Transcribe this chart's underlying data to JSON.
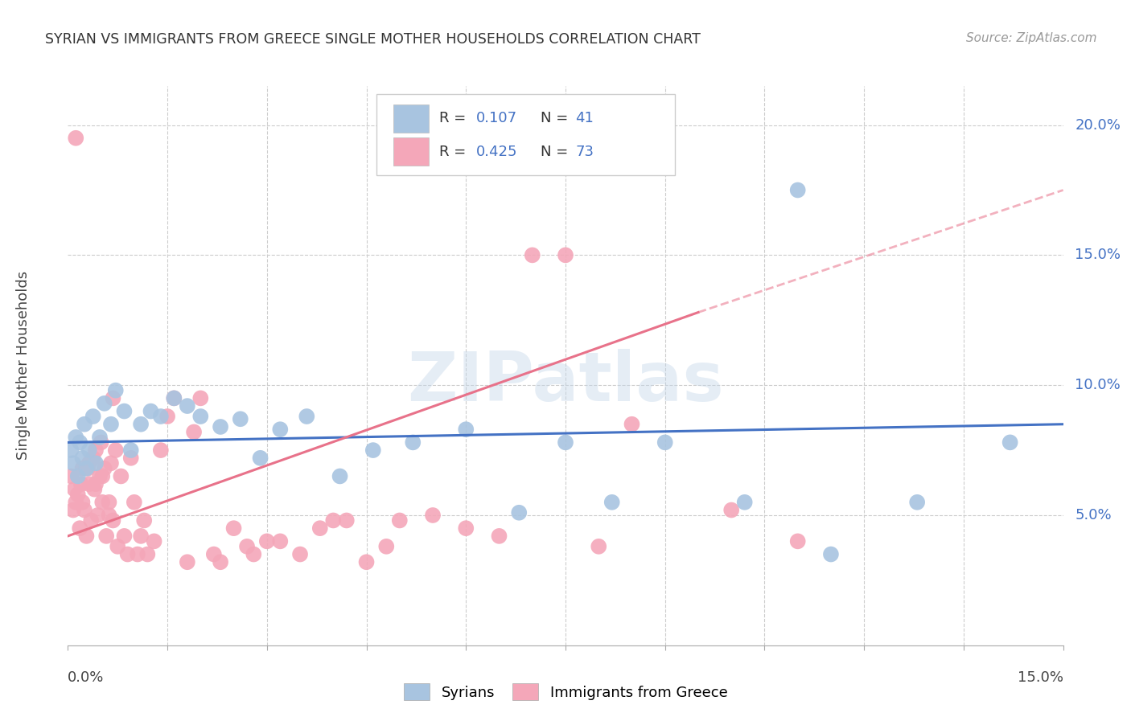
{
  "title": "SYRIAN VS IMMIGRANTS FROM GREECE SINGLE MOTHER HOUSEHOLDS CORRELATION CHART",
  "source": "Source: ZipAtlas.com",
  "ylabel": "Single Mother Households",
  "xlim": [
    0.0,
    15.0
  ],
  "ylim": [
    0.0,
    21.5
  ],
  "yticks": [
    5.0,
    10.0,
    15.0,
    20.0
  ],
  "xticks": [
    0.0,
    1.5,
    3.0,
    4.5,
    6.0,
    7.5,
    9.0,
    10.5,
    12.0,
    13.5,
    15.0
  ],
  "syrian_R": 0.107,
  "syrian_N": 41,
  "greece_R": 0.425,
  "greece_N": 73,
  "syrian_color": "#a8c4e0",
  "greece_color": "#f4a7b9",
  "syrian_line_color": "#4472c4",
  "greece_line_color": "#e8728a",
  "watermark": "ZIPatlas",
  "syrians_x": [
    0.05,
    0.08,
    0.12,
    0.15,
    0.18,
    0.22,
    0.25,
    0.28,
    0.32,
    0.38,
    0.42,
    0.48,
    0.55,
    0.65,
    0.72,
    0.85,
    0.95,
    1.1,
    1.25,
    1.4,
    1.6,
    1.8,
    2.0,
    2.3,
    2.6,
    2.9,
    3.2,
    3.6,
    4.1,
    4.6,
    5.2,
    6.0,
    6.8,
    7.5,
    8.2,
    9.0,
    10.2,
    11.5,
    12.8,
    14.2,
    11.0
  ],
  "syrians_y": [
    7.5,
    7.0,
    8.0,
    6.5,
    7.8,
    7.2,
    8.5,
    6.8,
    7.5,
    8.8,
    7.0,
    8.0,
    9.3,
    8.5,
    9.8,
    9.0,
    7.5,
    8.5,
    9.0,
    8.8,
    9.5,
    9.2,
    8.8,
    8.4,
    8.7,
    7.2,
    8.3,
    8.8,
    6.5,
    7.5,
    7.8,
    8.3,
    5.1,
    7.8,
    5.5,
    7.8,
    5.5,
    3.5,
    5.5,
    7.8,
    17.5
  ],
  "greece_x": [
    0.05,
    0.08,
    0.1,
    0.12,
    0.15,
    0.18,
    0.2,
    0.22,
    0.25,
    0.28,
    0.3,
    0.32,
    0.35,
    0.38,
    0.4,
    0.42,
    0.45,
    0.48,
    0.5,
    0.52,
    0.55,
    0.58,
    0.62,
    0.65,
    0.68,
    0.72,
    0.75,
    0.8,
    0.85,
    0.9,
    0.95,
    1.0,
    1.05,
    1.1,
    1.15,
    1.2,
    1.3,
    1.4,
    1.5,
    1.6,
    1.8,
    2.0,
    2.2,
    2.5,
    2.8,
    3.0,
    3.2,
    3.5,
    3.8,
    4.0,
    4.2,
    4.5,
    4.8,
    5.0,
    5.5,
    6.0,
    6.5,
    7.0,
    7.5,
    8.0,
    8.5,
    10.0,
    11.0,
    1.9,
    2.3,
    2.7,
    0.42,
    0.52,
    0.62,
    0.32,
    0.22,
    0.12,
    0.68
  ],
  "greece_y": [
    6.5,
    5.2,
    6.0,
    5.5,
    5.8,
    4.5,
    6.2,
    5.5,
    5.2,
    4.2,
    6.8,
    6.2,
    4.8,
    7.2,
    6.0,
    7.5,
    5.0,
    6.5,
    7.8,
    5.5,
    6.8,
    4.2,
    5.0,
    7.0,
    4.8,
    7.5,
    3.8,
    6.5,
    4.2,
    3.5,
    7.2,
    5.5,
    3.5,
    4.2,
    4.8,
    3.5,
    4.0,
    7.5,
    8.8,
    9.5,
    3.2,
    9.5,
    3.5,
    4.5,
    3.5,
    4.0,
    4.0,
    3.5,
    4.5,
    4.8,
    4.8,
    3.2,
    3.8,
    4.8,
    5.0,
    4.5,
    4.2,
    15.0,
    15.0,
    3.8,
    8.5,
    5.2,
    4.0,
    8.2,
    3.2,
    3.8,
    6.2,
    6.5,
    5.5,
    7.0,
    6.8,
    19.5,
    9.5
  ],
  "background_color": "#ffffff",
  "grid_color": "#cccccc",
  "syrian_trend": [
    0.0,
    15.0,
    7.8,
    8.5
  ],
  "greece_trend_solid": [
    0.0,
    9.5,
    4.2,
    12.8
  ],
  "greece_trend_dash": [
    9.5,
    15.0,
    12.8,
    17.5
  ]
}
